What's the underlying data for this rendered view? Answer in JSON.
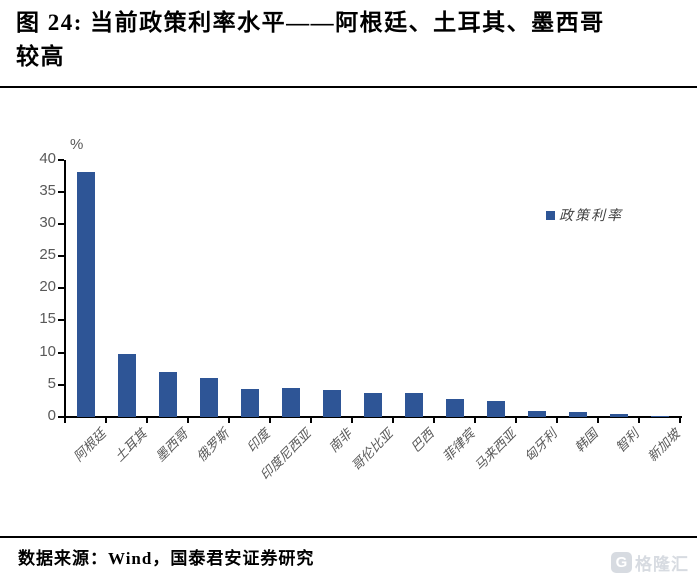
{
  "page": {
    "figure_title": "图 24: 当前政策利率水平——阿根廷、土耳其、墨西哥较高",
    "title_lines": [
      "图 24: 当前政策利率水平——阿根廷、土耳其、墨西哥",
      "较高"
    ],
    "source_text": "数据来源：Wind，国泰君安证券研究",
    "watermark": {
      "icon_letter": "G",
      "text": "格隆汇"
    }
  },
  "chart_data": {
    "type": "bar",
    "title": "当前政策利率水平",
    "unit_label": "%",
    "categories": [
      "阿根廷",
      "土耳其",
      "墨西哥",
      "俄罗斯",
      "印度",
      "印度尼西亚",
      "南非",
      "哥伦比亚",
      "巴西",
      "菲律宾",
      "马来西亚",
      "匈牙利",
      "韩国",
      "智利",
      "新加坡"
    ],
    "series": [
      {
        "name": "政策利率",
        "values": [
          38,
          9.75,
          7,
          6,
          4.4,
          4.5,
          4.25,
          3.75,
          3.75,
          2.75,
          2.5,
          0.9,
          0.75,
          0.5,
          0.2
        ]
      }
    ],
    "ylim": [
      0,
      40
    ],
    "ytick_step": 5,
    "grid": false,
    "legend_position": "upper-right",
    "colors": {
      "bar": "#2E5596",
      "axis": "#000000",
      "tick_label": "#595959"
    }
  }
}
